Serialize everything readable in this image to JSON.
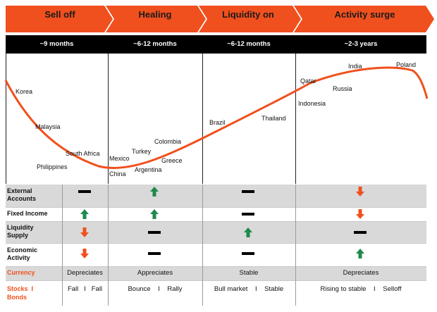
{
  "phases": [
    {
      "label": "Sell off",
      "duration": "~9 months"
    },
    {
      "label": "Healing",
      "duration": "~6-12 months"
    },
    {
      "label": "Liquidity on",
      "duration": "~6-12 months"
    },
    {
      "label": "Activity surge",
      "duration": "~2-3 years"
    }
  ],
  "countries": {
    "korea": "Korea",
    "malaysia": "Malaysia",
    "south_africa": "South Africa",
    "philippines": "Philippines",
    "mexico": "Mexico",
    "china": "China",
    "turkey": "Turkey",
    "colombia": "Colombia",
    "greece": "Greece",
    "argentina": "Argentina",
    "brazil": "Brazil",
    "thailand": "Thailand",
    "qatar": "Qatar",
    "indonesia": "Indonesia",
    "russia": "Russia",
    "india": "India",
    "poland": "Poland"
  },
  "rows": [
    {
      "label": "External Accounts",
      "indicators": [
        "flat",
        "up",
        "flat",
        "down"
      ]
    },
    {
      "label": "Fixed Income",
      "indicators": [
        "up",
        "up",
        "flat",
        "down"
      ]
    },
    {
      "label": "Liquidity Supply",
      "indicators": [
        "down",
        "flat",
        "up",
        "flat"
      ]
    },
    {
      "label": "Economic Activity",
      "indicators": [
        "down",
        "flat",
        "flat",
        "up"
      ]
    }
  ],
  "currency": {
    "label": "Currency",
    "values": [
      "Depreciates",
      "Appreciates",
      "Stable",
      "Depreciates"
    ]
  },
  "stocks_bonds": {
    "label_line1": "Stocks  I",
    "label_line2": "Bonds",
    "values": [
      "Fall   I   Fall",
      "Bounce    I    Rally",
      "Bull market    I    Stable",
      "Rising to stable    I    Selloff"
    ]
  },
  "colors": {
    "accent": "#f0501e",
    "arrow_up": "#1e8a4c",
    "arrow_down": "#f0501e",
    "band_gray": "#d9d9d9"
  }
}
